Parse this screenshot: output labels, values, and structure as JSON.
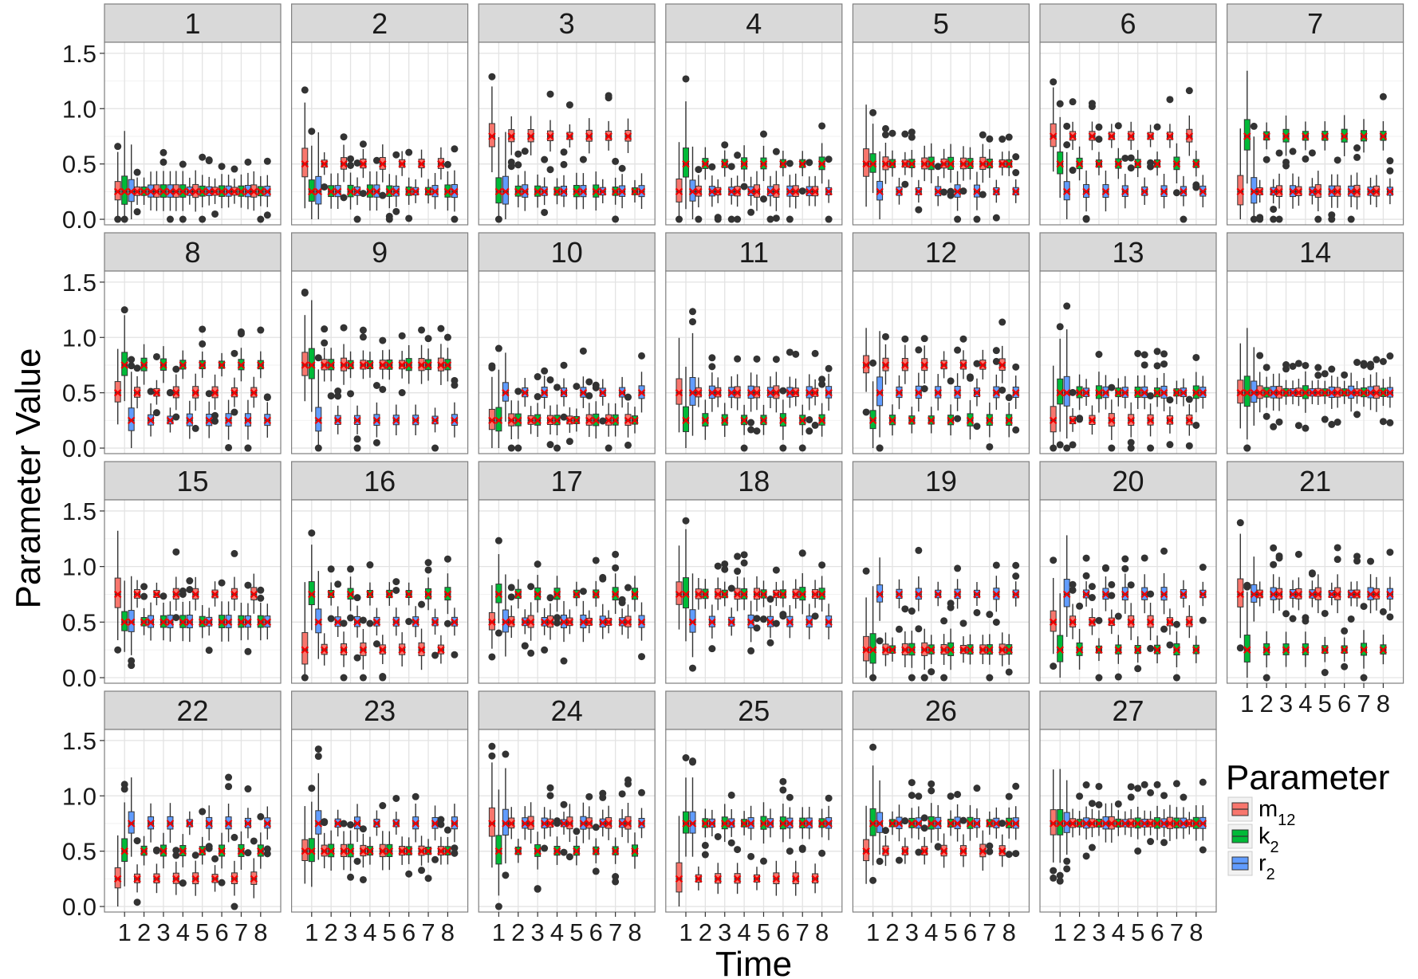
{
  "chart_data": {
    "type": "box",
    "facet_layout": "7 columns x 4 rows",
    "panels": [
      "1",
      "2",
      "3",
      "4",
      "5",
      "6",
      "7",
      "8",
      "9",
      "10",
      "11",
      "12",
      "13",
      "14",
      "15",
      "16",
      "17",
      "18",
      "19",
      "20",
      "21",
      "22",
      "23",
      "24",
      "25",
      "26",
      "27"
    ],
    "x": [
      1,
      2,
      3,
      4,
      5,
      6,
      7,
      8
    ],
    "x_ticks": [
      "1",
      "2",
      "3",
      "4",
      "5",
      "6",
      "7",
      "8"
    ],
    "y_ticks": [
      "0.0",
      "0.5",
      "1.0",
      "1.5"
    ],
    "ylim": [
      -0.05,
      1.6
    ],
    "xlabel": "Time",
    "ylabel": "Parameter Value",
    "legend": {
      "title": "Parameter",
      "placement": "right",
      "entries": [
        {
          "label": "m",
          "sub": "12",
          "color": "#F8766D"
        },
        {
          "label": "k",
          "sub": "2",
          "color": "#00BA38"
        },
        {
          "label": "r",
          "sub": "2",
          "color": "#619CFF"
        }
      ]
    },
    "true_value_marker": {
      "symbol": "x",
      "color": "#EE0000"
    },
    "true_values": [
      {
        "m12": 0.25,
        "k2": 0.25,
        "r2": 0.25
      },
      {
        "m12": 0.5,
        "k2": 0.25,
        "r2": 0.25
      },
      {
        "m12": 0.75,
        "k2": 0.25,
        "r2": 0.25
      },
      {
        "m12": 0.25,
        "k2": 0.5,
        "r2": 0.25
      },
      {
        "m12": 0.5,
        "k2": 0.5,
        "r2": 0.25
      },
      {
        "m12": 0.75,
        "k2": 0.5,
        "r2": 0.25
      },
      {
        "m12": 0.25,
        "k2": 0.75,
        "r2": 0.25
      },
      {
        "m12": 0.5,
        "k2": 0.75,
        "r2": 0.25
      },
      {
        "m12": 0.75,
        "k2": 0.75,
        "r2": 0.25
      },
      {
        "m12": 0.25,
        "k2": 0.25,
        "r2": 0.5
      },
      {
        "m12": 0.5,
        "k2": 0.25,
        "r2": 0.5
      },
      {
        "m12": 0.75,
        "k2": 0.25,
        "r2": 0.5
      },
      {
        "m12": 0.25,
        "k2": 0.5,
        "r2": 0.5
      },
      {
        "m12": 0.5,
        "k2": 0.5,
        "r2": 0.5
      },
      {
        "m12": 0.75,
        "k2": 0.5,
        "r2": 0.5
      },
      {
        "m12": 0.25,
        "k2": 0.75,
        "r2": 0.5
      },
      {
        "m12": 0.5,
        "k2": 0.75,
        "r2": 0.5
      },
      {
        "m12": 0.75,
        "k2": 0.75,
        "r2": 0.5
      },
      {
        "m12": 0.25,
        "k2": 0.25,
        "r2": 0.75
      },
      {
        "m12": 0.5,
        "k2": 0.25,
        "r2": 0.75
      },
      {
        "m12": 0.75,
        "k2": 0.25,
        "r2": 0.75
      },
      {
        "m12": 0.25,
        "k2": 0.5,
        "r2": 0.75
      },
      {
        "m12": 0.5,
        "k2": 0.5,
        "r2": 0.75
      },
      {
        "m12": 0.75,
        "k2": 0.5,
        "r2": 0.75
      },
      {
        "m12": 0.25,
        "k2": 0.75,
        "r2": 0.75
      },
      {
        "m12": 0.5,
        "k2": 0.75,
        "r2": 0.75
      },
      {
        "m12": 0.75,
        "k2": 0.75,
        "r2": 0.75
      }
    ],
    "grid": true
  }
}
